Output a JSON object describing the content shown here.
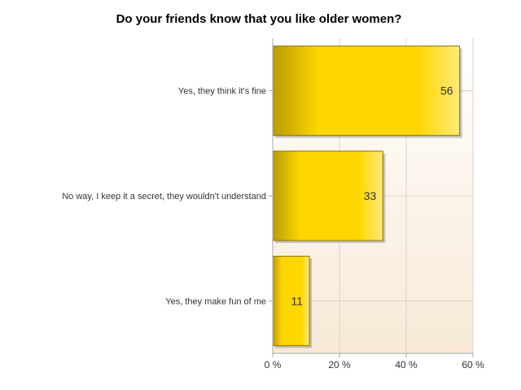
{
  "chart_data": {
    "type": "bar",
    "orientation": "horizontal",
    "title": "Do your friends know that you like older women?",
    "categories": [
      "Yes, they think it's fine",
      "No way, I keep it a secret, they wouldn't understand",
      "Yes, they make fun of me"
    ],
    "values": [
      56,
      33,
      11
    ],
    "value_labels": [
      "56",
      "33",
      "11"
    ],
    "xlim": [
      0,
      60
    ],
    "xticks": [
      0,
      20,
      40,
      60
    ],
    "xtick_labels": [
      "0 %",
      "20 %",
      "40 %",
      "60 %"
    ],
    "grid": true,
    "colors": {
      "bar_dark": "#b89a00",
      "bar_main": "#ffd700",
      "bar_light": "#ffe97a",
      "bar_stroke": "#8a7400",
      "shadow": "#999999",
      "plot_bg_top": "#ffffff",
      "plot_bg_bottom": "#f8e9d6",
      "grid": "#dcd2c8",
      "axis": "#aaaaaa"
    }
  }
}
